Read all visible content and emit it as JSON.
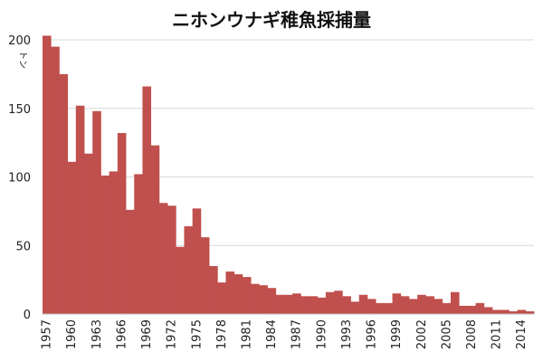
{
  "chart_data": {
    "type": "bar",
    "title": "ニホンウナギ稚魚採捕量",
    "ylabel": "トン",
    "xlabel": "",
    "ylim": [
      0,
      200
    ],
    "yticks": [
      0,
      50,
      100,
      150,
      200
    ],
    "x_tick_labels": [
      "1957",
      "1960",
      "1963",
      "1966",
      "1969",
      "1972",
      "1975",
      "1978",
      "1981",
      "1984",
      "1987",
      "1990",
      "1993",
      "1996",
      "1999",
      "2002",
      "2005",
      "2008",
      "2011",
      "2014"
    ],
    "grid": true,
    "bar_color": "#c0504d",
    "categories": [
      1957,
      1958,
      1959,
      1960,
      1961,
      1962,
      1963,
      1964,
      1965,
      1966,
      1967,
      1968,
      1969,
      1970,
      1971,
      1972,
      1973,
      1974,
      1975,
      1976,
      1977,
      1978,
      1979,
      1980,
      1981,
      1982,
      1983,
      1984,
      1985,
      1986,
      1987,
      1988,
      1989,
      1990,
      1991,
      1992,
      1993,
      1994,
      1995,
      1996,
      1997,
      1998,
      1999,
      2000,
      2001,
      2002,
      2003,
      2004,
      2005,
      2006,
      2007,
      2008,
      2009,
      2010,
      2011,
      2012,
      2013,
      2014,
      2015
    ],
    "values": [
      203,
      195,
      175,
      111,
      152,
      117,
      148,
      101,
      104,
      132,
      76,
      102,
      166,
      123,
      81,
      79,
      49,
      64,
      77,
      56,
      35,
      23,
      31,
      29,
      27,
      22,
      21,
      19,
      14,
      14,
      15,
      13,
      13,
      12,
      16,
      17,
      13,
      9,
      14,
      11,
      8,
      8,
      15,
      13,
      11,
      14,
      13,
      11,
      8,
      16,
      6,
      6,
      8,
      5,
      3,
      3,
      2,
      3,
      2
    ]
  }
}
